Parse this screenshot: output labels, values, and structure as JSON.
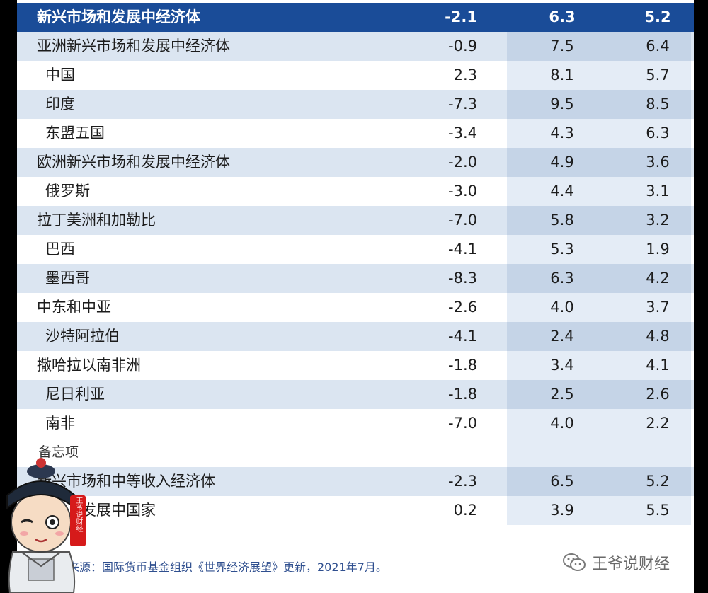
{
  "table": {
    "rows": [
      {
        "name": "新兴市场和发展中经济体",
        "v1": "-2.1",
        "v2": "6.3",
        "v3": "5.2",
        "style": "header",
        "indent": false
      },
      {
        "name": "亚洲新兴市场和发展中经济体",
        "v1": "-0.9",
        "v2": "7.5",
        "v3": "6.4",
        "style": "shade",
        "indent": false
      },
      {
        "name": "中国",
        "v1": "2.3",
        "v2": "8.1",
        "v3": "5.7",
        "style": "plain",
        "indent": true
      },
      {
        "name": "印度",
        "v1": "-7.3",
        "v2": "9.5",
        "v3": "8.5",
        "style": "shade",
        "indent": true
      },
      {
        "name": "东盟五国",
        "v1": "-3.4",
        "v2": "4.3",
        "v3": "6.3",
        "style": "plain",
        "indent": true
      },
      {
        "name": "欧洲新兴市场和发展中经济体",
        "v1": "-2.0",
        "v2": "4.9",
        "v3": "3.6",
        "style": "shade",
        "indent": false
      },
      {
        "name": "俄罗斯",
        "v1": "-3.0",
        "v2": "4.4",
        "v3": "3.1",
        "style": "plain",
        "indent": true
      },
      {
        "name": "拉丁美洲和加勒比",
        "v1": "-7.0",
        "v2": "5.8",
        "v3": "3.2",
        "style": "shade",
        "indent": false
      },
      {
        "name": "巴西",
        "v1": "-4.1",
        "v2": "5.3",
        "v3": "1.9",
        "style": "plain",
        "indent": true
      },
      {
        "name": "墨西哥",
        "v1": "-8.3",
        "v2": "6.3",
        "v3": "4.2",
        "style": "shade",
        "indent": true
      },
      {
        "name": "中东和中亚",
        "v1": "-2.6",
        "v2": "4.0",
        "v3": "3.7",
        "style": "plain",
        "indent": false
      },
      {
        "name": "沙特阿拉伯",
        "v1": "-4.1",
        "v2": "2.4",
        "v3": "4.8",
        "style": "shade",
        "indent": true
      },
      {
        "name": "撒哈拉以南非洲",
        "v1": "-1.8",
        "v2": "3.4",
        "v3": "4.1",
        "style": "plain",
        "indent": false
      },
      {
        "name": "尼日利亚",
        "v1": "-1.8",
        "v2": "2.5",
        "v3": "2.6",
        "style": "shade",
        "indent": true
      },
      {
        "name": "南非",
        "v1": "-7.0",
        "v2": "4.0",
        "v3": "2.2",
        "style": "plain",
        "indent": true
      },
      {
        "name": "备忘项",
        "v1": "",
        "v2": "",
        "v3": "",
        "style": "memo",
        "indent": false
      },
      {
        "name": "新兴市场和中等收入经济体",
        "v1": "-2.3",
        "v2": "6.5",
        "v3": "5.2",
        "style": "shade",
        "indent": false
      },
      {
        "name": "低收入发展中国家",
        "v1": "0.2",
        "v2": "3.9",
        "v3": "5.5",
        "style": "plain",
        "indent": false
      }
    ]
  },
  "source": "资料来源：国际货币基金组织《世界经济展望》更新，2021年7月。",
  "watermark": {
    "text": "王爷说财经",
    "icon": "wechat-icon"
  },
  "mascot": {
    "icon": "cartoon-official-mascot",
    "seal_text": "王爷说财经"
  },
  "colors": {
    "header": "#1a4c98",
    "shade": "#dbe5f1",
    "column_shade": "#c5d4e7",
    "column_light": "#e4ecf6"
  }
}
